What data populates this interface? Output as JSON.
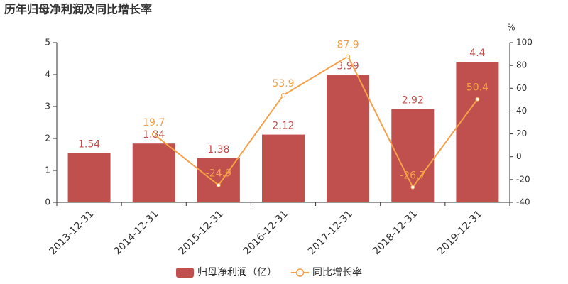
{
  "chart_data": {
    "type": "bar_line",
    "title": "历年归母净利润及同比增长率",
    "categories": [
      "2013-12-31",
      "2014-12-31",
      "2015-12-31",
      "2016-12-31",
      "2017-12-31",
      "2018-12-31",
      "2019-12-31"
    ],
    "series": [
      {
        "name": "归母净利润（亿）",
        "type": "bar",
        "color": "#c0504d",
        "values": [
          1.54,
          1.84,
          1.38,
          2.12,
          3.99,
          2.92,
          4.4
        ]
      },
      {
        "name": "同比增长率",
        "type": "line",
        "axis": "y2",
        "color": "#f5a04a",
        "values": [
          null,
          19.7,
          -24.9,
          53.9,
          87.9,
          -26.7,
          50.4
        ]
      }
    ],
    "ylim": [
      0,
      5
    ],
    "yticks": [
      0,
      1,
      2,
      3,
      4,
      5
    ],
    "y2label": "%",
    "y2lim": [
      -40,
      100
    ],
    "y2ticks": [
      -40,
      -20,
      0,
      20,
      40,
      60,
      80,
      100
    ]
  }
}
